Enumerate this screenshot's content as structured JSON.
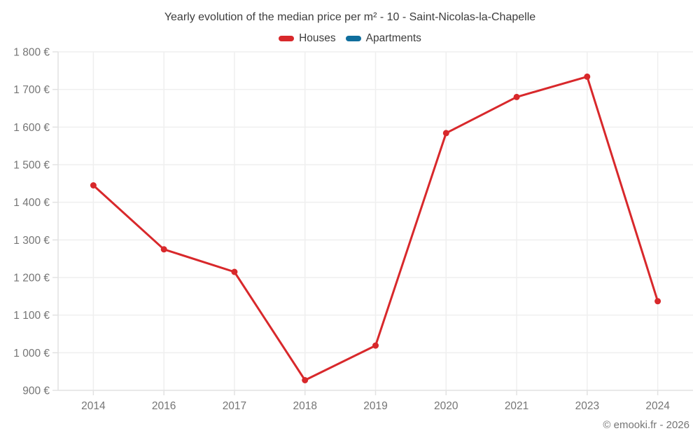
{
  "title": "Yearly evolution of the median price per m² - 10 - Saint-Nicolas-la-Chapelle",
  "footer": "© emooki.fr - 2026",
  "legend": {
    "items": [
      {
        "label": "Houses",
        "color": "#d8282b"
      },
      {
        "label": "Apartments",
        "color": "#0f6e9d"
      }
    ]
  },
  "colors": {
    "houses_red": "#d8282b",
    "apartments_blue": "#0f6e9d",
    "grid": "#efefef",
    "axis": "#e2e2e2",
    "tick_label": "#757575",
    "title_text": "#3d3d3d"
  },
  "chart_data": {
    "type": "line",
    "title": "Yearly evolution of the median price per m² - 10 - Saint-Nicolas-la-Chapelle",
    "categories": [
      "2014",
      "2016",
      "2017",
      "2018",
      "2019",
      "2020",
      "2021",
      "2023",
      "2024"
    ],
    "series": [
      {
        "name": "Houses",
        "color": "#d8282b",
        "values": [
          1445,
          1275,
          1215,
          927,
          1019,
          1584,
          1680,
          1734,
          1137
        ]
      },
      {
        "name": "Apartments",
        "color": "#0f6e9d",
        "values": []
      }
    ],
    "xlabel": "",
    "ylabel": "",
    "ylim": [
      900,
      1800
    ],
    "ytick_step": 100,
    "y_unit": "€",
    "grid": true,
    "legend_position": "top"
  }
}
